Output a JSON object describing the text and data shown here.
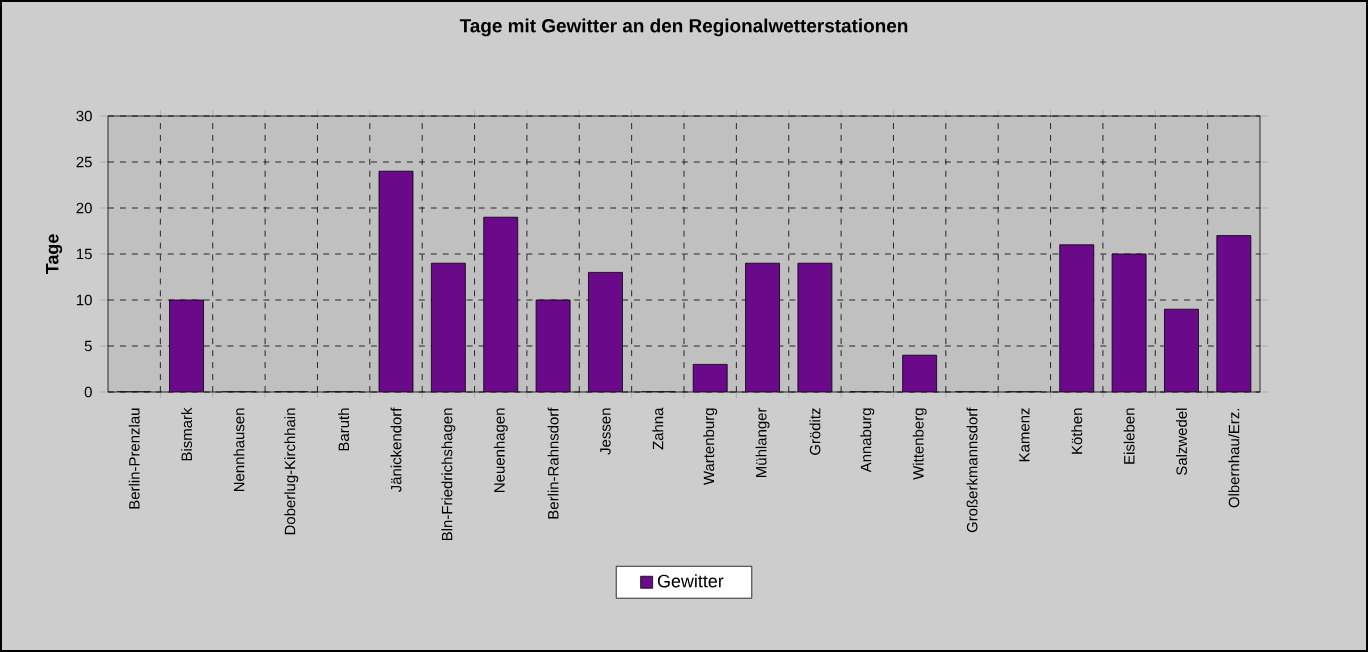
{
  "chart_data": {
    "type": "bar",
    "title": "Tage mit Gewitter an den Regionalwetterstationen",
    "ylabel": "Tage",
    "categories": [
      "Berlin-Prenzlau",
      "Bismark",
      "Nennhausen",
      "Doberlug-Kirchhain",
      "Baruth",
      "Jänickendorf",
      "Bln-Friedrichshagen",
      "Neuenhagen",
      "Berlin-Rahnsdorf",
      "Jessen",
      "Zahna",
      "Wartenburg",
      "Mühlanger",
      "Gröditz",
      "Annaburg",
      "Wittenberg",
      "Großerkmannsdorf",
      "Kamenz",
      "Köthen",
      "Eisleben",
      "Salzwedel",
      "Olbernhau/Erz."
    ],
    "series": [
      {
        "name": "Gewitter",
        "color": "#6a0a8a",
        "values": [
          0,
          10,
          0,
          0,
          0,
          24,
          14,
          19,
          10,
          13,
          0,
          3,
          14,
          14,
          0,
          4,
          0,
          0,
          16,
          15,
          9,
          17
        ]
      }
    ],
    "ylim": [
      0,
      30
    ],
    "yticks": [
      0,
      5,
      10,
      15,
      20,
      25,
      30
    ],
    "grid": true,
    "legend": "bottom"
  }
}
